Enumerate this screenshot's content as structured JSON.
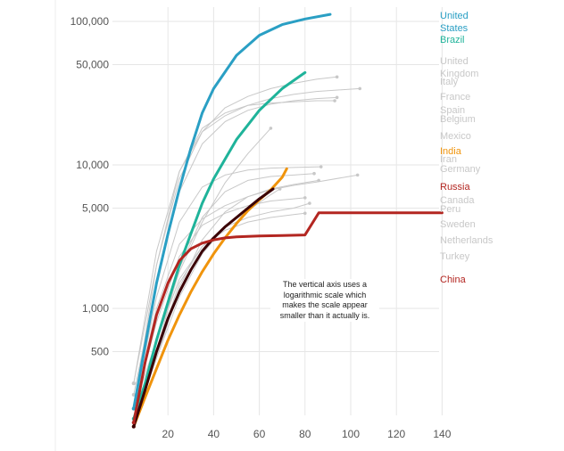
{
  "chart_data": {
    "type": "line",
    "title": "",
    "xlabel": "",
    "ylabel": "",
    "y_scale": "log",
    "xlim": [
      0,
      142
    ],
    "ylim": [
      140,
      125000
    ],
    "x_ticks": [
      20,
      40,
      60,
      80,
      100,
      120,
      140
    ],
    "y_ticks": [
      {
        "value": 100000,
        "label": "100,000"
      },
      {
        "value": 50000,
        "label": "50,000"
      },
      {
        "value": 10000,
        "label": "10,000"
      },
      {
        "value": 5000,
        "label": "5,000"
      },
      {
        "value": 1000,
        "label": "1,000"
      },
      {
        "value": 500,
        "label": "500"
      }
    ],
    "grid": true,
    "annotation": "The vertical axis uses a logarithmic scale which makes the scale appear smaller than it actually is.",
    "colors": {
      "united_states": "#2a9fc4",
      "brazil": "#1fb39a",
      "india": "#f0940c",
      "russia": "#b32621",
      "china": "#b32621",
      "highlight_dark": "#3a0005",
      "others": "#c8c8c8",
      "axis_text": "#555555"
    },
    "series": [
      {
        "name": "United States",
        "color": "#2a9fc4",
        "width": 3,
        "x": [
          5,
          10,
          15,
          20,
          25,
          30,
          35,
          40,
          50,
          60,
          70,
          80,
          91
        ],
        "y": [
          200,
          550,
          1500,
          3300,
          6800,
          13000,
          23000,
          34000,
          58000,
          80000,
          95000,
          104000,
          112000
        ]
      },
      {
        "name": "Brazil",
        "color": "#1fb39a",
        "width": 3,
        "x": [
          5,
          10,
          15,
          20,
          25,
          30,
          35,
          40,
          50,
          60,
          70,
          80
        ],
        "y": [
          170,
          300,
          600,
          1100,
          2000,
          3300,
          5400,
          8000,
          15000,
          24000,
          34000,
          44000
        ]
      },
      {
        "name": "India",
        "color": "#f0940c",
        "width": 3,
        "x": [
          5,
          10,
          15,
          20,
          25,
          30,
          35,
          40,
          45,
          50,
          55,
          60,
          65,
          70,
          72
        ],
        "y": [
          150,
          240,
          380,
          600,
          900,
          1300,
          1800,
          2400,
          3100,
          3900,
          4800,
          5700,
          6700,
          8200,
          9400
        ]
      },
      {
        "name": "",
        "color": "#3a0005",
        "width": 3,
        "x": [
          5,
          10,
          15,
          20,
          25,
          30,
          35,
          40,
          45,
          50,
          55,
          60,
          66
        ],
        "y": [
          150,
          270,
          500,
          850,
          1300,
          1850,
          2500,
          3100,
          3700,
          4300,
          5000,
          5800,
          6800
        ]
      },
      {
        "name": "Russia",
        "color": "#b32621",
        "width": 3,
        "x": [
          5,
          10,
          15,
          20,
          25,
          30,
          35,
          40,
          45,
          50,
          60,
          70,
          80,
          86,
          140
        ],
        "y": [
          160,
          420,
          900,
          1500,
          2150,
          2600,
          2850,
          3000,
          3100,
          3150,
          3200,
          3220,
          3250,
          4630,
          4630
        ]
      },
      {
        "name": "United Kingdom",
        "color": "#c8c8c8",
        "width": 1,
        "x": [
          5,
          15,
          25,
          35,
          45,
          55,
          65,
          75,
          85,
          94
        ],
        "y": [
          300,
          2000,
          8000,
          17000,
          25000,
          30000,
          34000,
          37000,
          39500,
          41000
        ]
      },
      {
        "name": "Italy",
        "color": "#c8c8c8",
        "width": 1,
        "x": [
          5,
          15,
          25,
          35,
          45,
          55,
          65,
          75,
          85,
          104
        ],
        "y": [
          300,
          2500,
          9000,
          17000,
          22000,
          26000,
          29000,
          31000,
          32500,
          34000
        ]
      },
      {
        "name": "France",
        "color": "#c8c8c8",
        "width": 1,
        "x": [
          5,
          15,
          25,
          35,
          45,
          55,
          65,
          75,
          85,
          94
        ],
        "y": [
          250,
          1500,
          6500,
          14000,
          20000,
          24000,
          26500,
          28000,
          29000,
          29500
        ]
      },
      {
        "name": "Spain",
        "color": "#c8c8c8",
        "width": 1,
        "x": [
          5,
          15,
          25,
          35,
          45,
          55,
          65,
          75,
          85,
          93
        ],
        "y": [
          200,
          2000,
          9000,
          18000,
          23000,
          26000,
          27000,
          27500,
          28000,
          28000
        ]
      },
      {
        "name": "Belgium",
        "color": "#c8c8c8",
        "width": 1,
        "x": [
          5,
          15,
          25,
          35,
          45,
          55,
          65,
          75,
          87
        ],
        "y": [
          200,
          1200,
          4000,
          7000,
          8500,
          9200,
          9500,
          9600,
          9700
        ]
      },
      {
        "name": "Mexico",
        "color": "#c8c8c8",
        "width": 1,
        "x": [
          5,
          15,
          25,
          35,
          45,
          55,
          65
        ],
        "y": [
          200,
          600,
          1800,
          4000,
          7500,
          12000,
          18000
        ]
      },
      {
        "name": "Iran",
        "color": "#c8c8c8",
        "width": 1,
        "x": [
          5,
          15,
          25,
          35,
          45,
          55,
          65,
          75,
          85,
          103
        ],
        "y": [
          200,
          1000,
          2800,
          4200,
          5200,
          6000,
          6700,
          7200,
          7600,
          8500
        ]
      },
      {
        "name": "Germany",
        "color": "#c8c8c8",
        "width": 1,
        "x": [
          5,
          15,
          25,
          35,
          45,
          55,
          65,
          75,
          84
        ],
        "y": [
          160,
          500,
          1900,
          4300,
          6500,
          7800,
          8300,
          8500,
          8700
        ]
      },
      {
        "name": "Canada",
        "color": "#c8c8c8",
        "width": 1,
        "x": [
          5,
          15,
          25,
          35,
          45,
          55,
          65,
          75,
          86
        ],
        "y": [
          160,
          450,
          1400,
          3000,
          4700,
          6000,
          6800,
          7300,
          7800
        ]
      },
      {
        "name": "Peru",
        "color": "#c8c8c8",
        "width": 1,
        "x": [
          5,
          15,
          25,
          35,
          45,
          55,
          65,
          69
        ],
        "y": [
          160,
          450,
          1200,
          2400,
          3700,
          4800,
          6200,
          6800
        ]
      },
      {
        "name": "Sweden",
        "color": "#c8c8c8",
        "width": 1,
        "x": [
          5,
          15,
          25,
          35,
          45,
          55,
          65,
          75,
          82
        ],
        "y": [
          160,
          500,
          1500,
          2700,
          3700,
          4300,
          4700,
          5000,
          5400
        ]
      },
      {
        "name": "Netherlands",
        "color": "#c8c8c8",
        "width": 1,
        "x": [
          5,
          15,
          25,
          35,
          45,
          55,
          65,
          75,
          80
        ],
        "y": [
          200,
          800,
          2300,
          3800,
          4600,
          5200,
          5600,
          5800,
          5900
        ]
      },
      {
        "name": "Turkey",
        "color": "#c8c8c8",
        "width": 1,
        "x": [
          5,
          15,
          25,
          35,
          45,
          55,
          65,
          75,
          80
        ],
        "y": [
          160,
          600,
          1600,
          2700,
          3500,
          4000,
          4300,
          4500,
          4600
        ]
      }
    ],
    "legend_labels": [
      {
        "text": "United",
        "color": "#2a9fc4"
      },
      {
        "text": "States",
        "color": "#2a9fc4"
      },
      {
        "text": "Brazil",
        "color": "#1fb39a"
      },
      {
        "text": "United",
        "color": "#c8c8c8"
      },
      {
        "text": "Kingdom",
        "color": "#c8c8c8"
      },
      {
        "text": "Italy",
        "color": "#c8c8c8"
      },
      {
        "text": "France",
        "color": "#c8c8c8"
      },
      {
        "text": "Spain",
        "color": "#c8c8c8"
      },
      {
        "text": "Belgium",
        "color": "#c8c8c8"
      },
      {
        "text": "Mexico",
        "color": "#c8c8c8"
      },
      {
        "text": "India",
        "color": "#f0940c"
      },
      {
        "text": "Iran",
        "color": "#c8c8c8"
      },
      {
        "text": "Germany",
        "color": "#c8c8c8"
      },
      {
        "text": "Russia",
        "color": "#b32621"
      },
      {
        "text": "Canada",
        "color": "#c8c8c8"
      },
      {
        "text": "Peru",
        "color": "#c8c8c8"
      },
      {
        "text": "Sweden",
        "color": "#c8c8c8"
      },
      {
        "text": "Netherlands",
        "color": "#c8c8c8"
      },
      {
        "text": "Turkey",
        "color": "#c8c8c8"
      },
      {
        "text": "China",
        "color": "#b32621"
      }
    ]
  }
}
